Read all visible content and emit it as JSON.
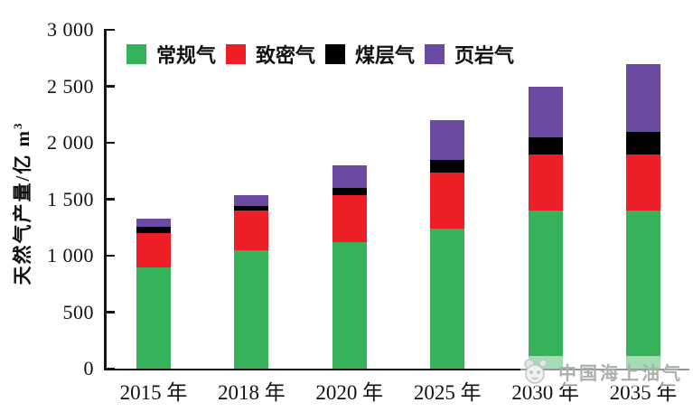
{
  "y_axis": {
    "title_main": "天然气产量/亿 m",
    "title_sup": "3",
    "max": 3000,
    "ticks": [
      0,
      500,
      1000,
      1500,
      2000,
      2500,
      3000
    ],
    "tick_labels": [
      "0",
      "500",
      "1 000",
      "1 500",
      "2 000",
      "2 500",
      "3 000"
    ]
  },
  "watermark": {
    "text": "中国海上油气"
  },
  "chart_data": {
    "type": "bar",
    "stacked": true,
    "title": "",
    "xlabel": "",
    "ylabel": "天然气产量/亿 m³",
    "ylim": [
      0,
      3000
    ],
    "grid": false,
    "legend_position": "top",
    "categories": [
      "2015 年",
      "2018 年",
      "2020 年",
      "2025 年",
      "2030 年",
      "2035 年"
    ],
    "series": [
      {
        "name": "常规气",
        "color": "#35b25a",
        "values": [
          900,
          1050,
          1120,
          1240,
          1400,
          1400
        ]
      },
      {
        "name": "致密气",
        "color": "#ec1e26",
        "values": [
          300,
          350,
          420,
          500,
          500,
          500
        ]
      },
      {
        "name": "煤层气",
        "color": "#000000",
        "values": [
          60,
          40,
          60,
          110,
          150,
          200
        ]
      },
      {
        "name": "页岩气",
        "color": "#6b4ba1",
        "values": [
          70,
          100,
          200,
          350,
          450,
          600
        ]
      }
    ],
    "totals": [
      1330,
      1540,
      1800,
      2200,
      2500,
      2700
    ]
  }
}
